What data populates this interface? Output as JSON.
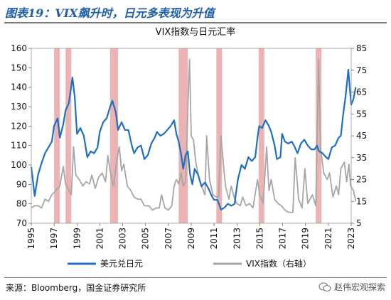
{
  "figure_title": "图表19：VIX飙升时，日元多表现为升值",
  "source_note": "来源：Bloomberg，国金证券研究所",
  "watermark": "赵伟宏观探索",
  "chart_data": {
    "type": "line",
    "title": "VIX指数与日元汇率",
    "x_ticks": [
      "1995",
      "1997",
      "1999",
      "2001",
      "2003",
      "2005",
      "2007",
      "2009",
      "2011",
      "2013",
      "2015",
      "2017",
      "2019",
      "2021",
      "2023"
    ],
    "xlim": [
      1995,
      2023
    ],
    "y_left": {
      "lim": [
        70,
        160
      ],
      "ticks": [
        70,
        80,
        90,
        100,
        110,
        120,
        130,
        140,
        150,
        160
      ]
    },
    "y_right": {
      "lim": [
        5,
        85
      ],
      "ticks": [
        5,
        15,
        25,
        35,
        45,
        55,
        65,
        75,
        85
      ]
    },
    "shaded_periods": [
      [
        1997.0,
        1997.5
      ],
      [
        1998.0,
        1998.5
      ],
      [
        2001.9,
        2002.6
      ],
      [
        2007.9,
        2008.7
      ],
      [
        2011.2,
        2011.7
      ],
      [
        2014.9,
        2015.4
      ],
      [
        2019.9,
        2020.4
      ]
    ],
    "series": [
      {
        "name": "美元兑日元",
        "axis": "left",
        "color": "#1f6fc1",
        "points": [
          [
            1995.0,
            99
          ],
          [
            1995.3,
            84
          ],
          [
            1995.6,
            95
          ],
          [
            1995.9,
            101
          ],
          [
            1996.2,
            106
          ],
          [
            1996.5,
            109
          ],
          [
            1996.8,
            112
          ],
          [
            1997.0,
            120
          ],
          [
            1997.3,
            124
          ],
          [
            1997.5,
            114
          ],
          [
            1997.8,
            121
          ],
          [
            1998.0,
            128
          ],
          [
            1998.3,
            132
          ],
          [
            1998.6,
            145
          ],
          [
            1998.8,
            135
          ],
          [
            1999.0,
            116
          ],
          [
            1999.3,
            119
          ],
          [
            1999.6,
            115
          ],
          [
            1999.9,
            104
          ],
          [
            2000.2,
            107
          ],
          [
            2000.5,
            106
          ],
          [
            2000.8,
            109
          ],
          [
            2001.0,
            117
          ],
          [
            2001.3,
            122
          ],
          [
            2001.6,
            124
          ],
          [
            2001.9,
            130
          ],
          [
            2002.1,
            133
          ],
          [
            2002.4,
            127
          ],
          [
            2002.6,
            118
          ],
          [
            2002.9,
            122
          ],
          [
            2003.2,
            118
          ],
          [
            2003.5,
            118
          ],
          [
            2003.8,
            110
          ],
          [
            2004.0,
            106
          ],
          [
            2004.3,
            109
          ],
          [
            2004.6,
            110
          ],
          [
            2004.9,
            103
          ],
          [
            2005.2,
            105
          ],
          [
            2005.5,
            111
          ],
          [
            2005.8,
            114
          ],
          [
            2006.0,
            117
          ],
          [
            2006.3,
            115
          ],
          [
            2006.6,
            116
          ],
          [
            2006.9,
            118
          ],
          [
            2007.2,
            120
          ],
          [
            2007.5,
            123
          ],
          [
            2007.7,
            116
          ],
          [
            2007.9,
            112
          ],
          [
            2008.1,
            106
          ],
          [
            2008.3,
            98
          ],
          [
            2008.5,
            105
          ],
          [
            2008.7,
            107
          ],
          [
            2008.9,
            95
          ],
          [
            2009.1,
            90
          ],
          [
            2009.3,
            98
          ],
          [
            2009.6,
            95
          ],
          [
            2009.9,
            89
          ],
          [
            2010.2,
            91
          ],
          [
            2010.5,
            88
          ],
          [
            2010.8,
            84
          ],
          [
            2011.0,
            82
          ],
          [
            2011.3,
            82
          ],
          [
            2011.6,
            77
          ],
          [
            2011.9,
            78
          ],
          [
            2012.2,
            80
          ],
          [
            2012.5,
            79
          ],
          [
            2012.8,
            80
          ],
          [
            2012.9,
            85
          ],
          [
            2013.1,
            93
          ],
          [
            2013.4,
            100
          ],
          [
            2013.7,
            98
          ],
          [
            2014.0,
            104
          ],
          [
            2014.3,
            102
          ],
          [
            2014.6,
            104
          ],
          [
            2014.8,
            114
          ],
          [
            2014.95,
            120
          ],
          [
            2015.2,
            119
          ],
          [
            2015.5,
            123
          ],
          [
            2015.8,
            120
          ],
          [
            2016.0,
            117
          ],
          [
            2016.3,
            110
          ],
          [
            2016.5,
            103
          ],
          [
            2016.8,
            104
          ],
          [
            2016.95,
            116
          ],
          [
            2017.2,
            112
          ],
          [
            2017.5,
            111
          ],
          [
            2017.8,
            112
          ],
          [
            2018.0,
            110
          ],
          [
            2018.3,
            106
          ],
          [
            2018.6,
            111
          ],
          [
            2018.9,
            113
          ],
          [
            2019.2,
            110
          ],
          [
            2019.5,
            108
          ],
          [
            2019.8,
            108
          ],
          [
            2020.0,
            110
          ],
          [
            2020.2,
            107
          ],
          [
            2020.5,
            106
          ],
          [
            2020.8,
            104
          ],
          [
            2021.0,
            103
          ],
          [
            2021.3,
            109
          ],
          [
            2021.6,
            110
          ],
          [
            2021.9,
            114
          ],
          [
            2022.1,
            115
          ],
          [
            2022.3,
            126
          ],
          [
            2022.5,
            135
          ],
          [
            2022.75,
            149
          ],
          [
            2022.9,
            138
          ],
          [
            2023.0,
            131
          ],
          [
            2023.2,
            134
          ],
          [
            2023.4,
            140
          ]
        ]
      },
      {
        "name": "VIX指数（右轴）",
        "axis": "right",
        "color": "#a6a6a6",
        "points": [
          [
            1995.0,
            12
          ],
          [
            1995.3,
            13
          ],
          [
            1995.6,
            13
          ],
          [
            1995.9,
            12
          ],
          [
            1996.2,
            16
          ],
          [
            1996.5,
            15
          ],
          [
            1996.8,
            18
          ],
          [
            1997.0,
            19
          ],
          [
            1997.3,
            21
          ],
          [
            1997.5,
            22
          ],
          [
            1997.8,
            31
          ],
          [
            1998.0,
            23
          ],
          [
            1998.3,
            20
          ],
          [
            1998.5,
            18
          ],
          [
            1998.7,
            40
          ],
          [
            1998.9,
            27
          ],
          [
            1999.2,
            25
          ],
          [
            1999.5,
            22
          ],
          [
            1999.8,
            24
          ],
          [
            2000.1,
            23
          ],
          [
            2000.3,
            27
          ],
          [
            2000.6,
            21
          ],
          [
            2000.9,
            26
          ],
          [
            2001.2,
            28
          ],
          [
            2001.5,
            24
          ],
          [
            2001.7,
            36
          ],
          [
            2001.9,
            29
          ],
          [
            2002.2,
            22
          ],
          [
            2002.5,
            34
          ],
          [
            2002.7,
            40
          ],
          [
            2002.9,
            29
          ],
          [
            2003.1,
            32
          ],
          [
            2003.4,
            22
          ],
          [
            2003.7,
            20
          ],
          [
            2004.0,
            17
          ],
          [
            2004.3,
            16
          ],
          [
            2004.6,
            16
          ],
          [
            2004.9,
            13
          ],
          [
            2005.3,
            13
          ],
          [
            2005.6,
            11
          ],
          [
            2005.9,
            12
          ],
          [
            2006.2,
            12
          ],
          [
            2006.4,
            18
          ],
          [
            2006.7,
            12
          ],
          [
            2007.0,
            11
          ],
          [
            2007.3,
            13
          ],
          [
            2007.5,
            22
          ],
          [
            2007.7,
            25
          ],
          [
            2007.9,
            23
          ],
          [
            2008.1,
            28
          ],
          [
            2008.3,
            22
          ],
          [
            2008.5,
            24
          ],
          [
            2008.75,
            65
          ],
          [
            2008.85,
            80
          ],
          [
            2009.0,
            45
          ],
          [
            2009.2,
            43
          ],
          [
            2009.4,
            33
          ],
          [
            2009.7,
            25
          ],
          [
            2009.9,
            22
          ],
          [
            2010.2,
            18
          ],
          [
            2010.35,
            45
          ],
          [
            2010.6,
            25
          ],
          [
            2010.9,
            18
          ],
          [
            2011.2,
            17
          ],
          [
            2011.4,
            17
          ],
          [
            2011.6,
            45
          ],
          [
            2011.8,
            33
          ],
          [
            2012.0,
            22
          ],
          [
            2012.3,
            16
          ],
          [
            2012.5,
            22
          ],
          [
            2012.8,
            16
          ],
          [
            2013.0,
            14
          ],
          [
            2013.3,
            13
          ],
          [
            2013.5,
            17
          ],
          [
            2013.8,
            13
          ],
          [
            2014.1,
            14
          ],
          [
            2014.4,
            12
          ],
          [
            2014.8,
            25
          ],
          [
            2015.0,
            18
          ],
          [
            2015.3,
            14
          ],
          [
            2015.6,
            40
          ],
          [
            2015.8,
            20
          ],
          [
            2016.0,
            25
          ],
          [
            2016.3,
            16
          ],
          [
            2016.6,
            14
          ],
          [
            2016.9,
            13
          ],
          [
            2017.2,
            11
          ],
          [
            2017.5,
            10
          ],
          [
            2017.9,
            10
          ],
          [
            2018.1,
            35
          ],
          [
            2018.4,
            16
          ],
          [
            2018.7,
            12
          ],
          [
            2018.95,
            30
          ],
          [
            2019.2,
            14
          ],
          [
            2019.6,
            18
          ],
          [
            2019.9,
            13
          ],
          [
            2020.15,
            80
          ],
          [
            2020.3,
            40
          ],
          [
            2020.6,
            28
          ],
          [
            2020.9,
            25
          ],
          [
            2021.1,
            28
          ],
          [
            2021.4,
            17
          ],
          [
            2021.7,
            22
          ],
          [
            2021.9,
            18
          ],
          [
            2022.1,
            30
          ],
          [
            2022.4,
            33
          ],
          [
            2022.6,
            24
          ],
          [
            2022.8,
            32
          ],
          [
            2022.95,
            22
          ],
          [
            2023.2,
            20
          ],
          [
            2023.4,
            15
          ]
        ]
      }
    ]
  }
}
